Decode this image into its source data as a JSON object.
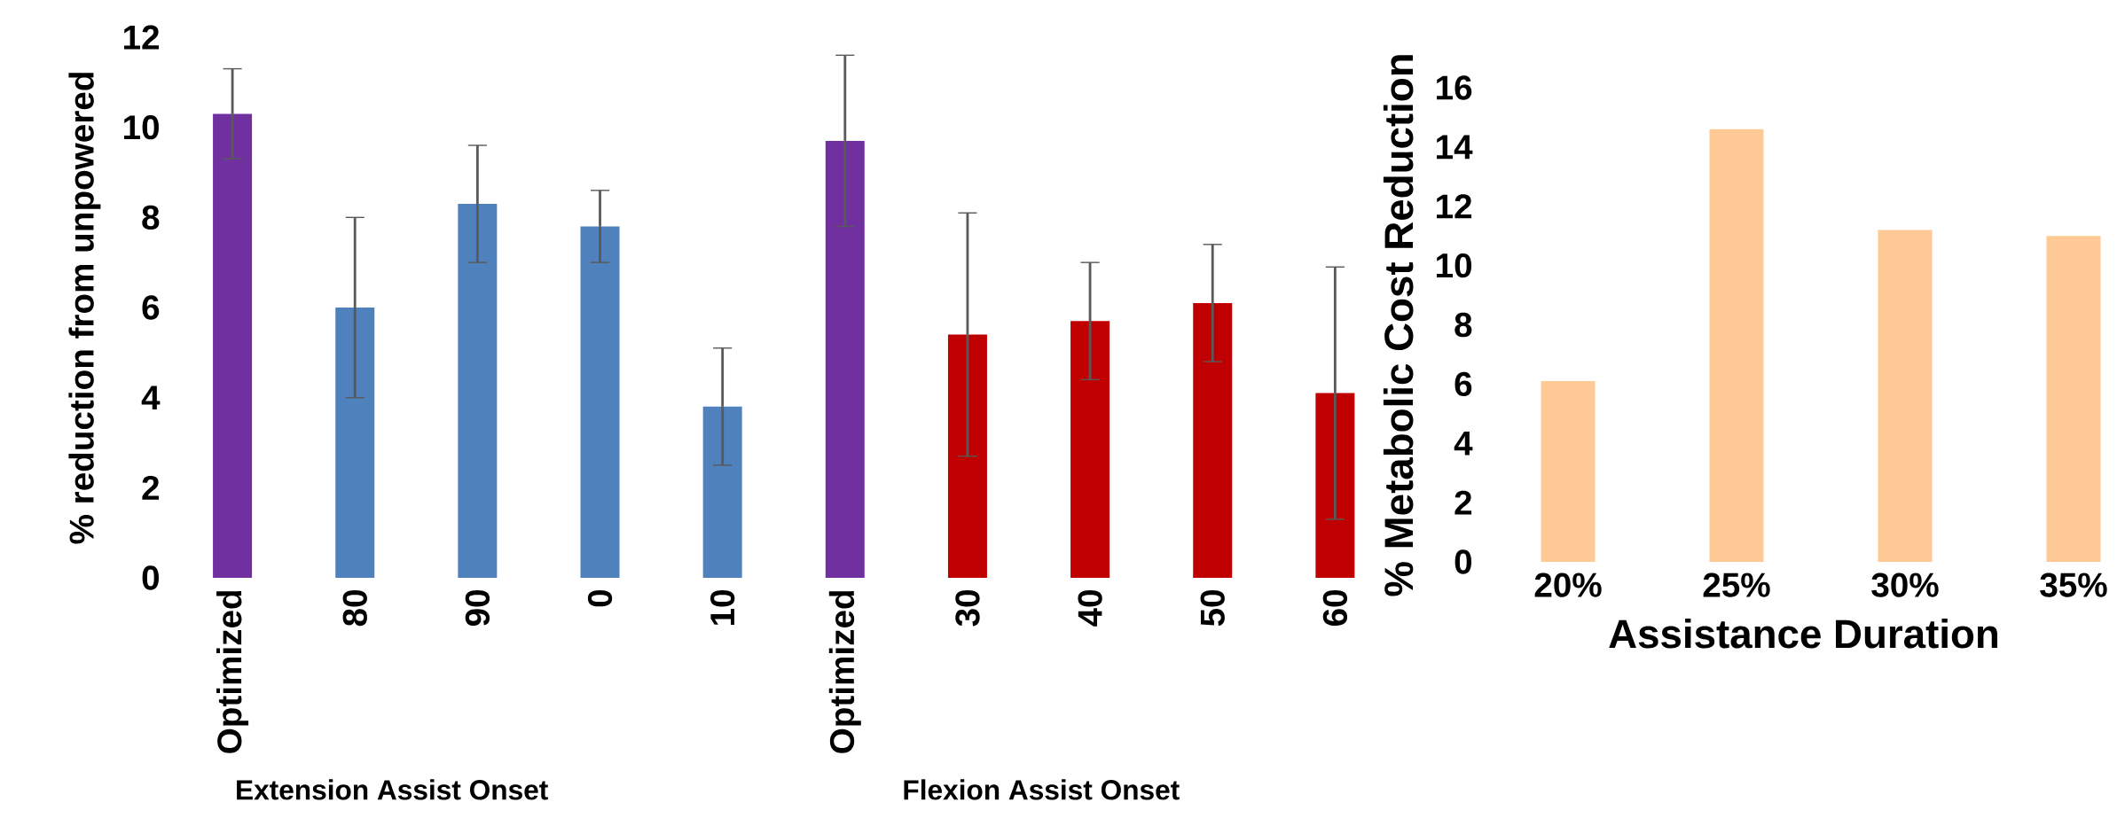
{
  "chart_data": [
    {
      "type": "bar",
      "ylabel": "% reduction from unpowered",
      "categories": [
        "Optimized",
        "80",
        "90",
        "0",
        "10",
        "Optimized",
        "30",
        "40",
        "50",
        "60"
      ],
      "values": [
        10.3,
        6.0,
        8.3,
        7.8,
        3.8,
        9.7,
        5.4,
        5.7,
        6.1,
        4.1
      ],
      "errors": [
        1.0,
        2.0,
        1.3,
        0.8,
        1.3,
        1.9,
        2.7,
        1.3,
        1.3,
        2.8
      ],
      "colors": [
        "#7030a0",
        "#4f81bd",
        "#4f81bd",
        "#4f81bd",
        "#4f81bd",
        "#7030a0",
        "#c00000",
        "#c00000",
        "#c00000",
        "#c00000"
      ],
      "ylim": [
        0,
        12
      ],
      "yticks": [
        0,
        2,
        4,
        6,
        8,
        10,
        12
      ],
      "annotations": [
        "Extension Assist Onset",
        "Flexion Assist Onset"
      ]
    },
    {
      "type": "bar",
      "ylabel": "% Metabolic Cost Reduction",
      "xlabel": "Assistance Duration",
      "categories": [
        "20%",
        "25%",
        "30%",
        "35%"
      ],
      "values": [
        6.1,
        14.6,
        11.2,
        11.0
      ],
      "color": "#fec995",
      "ylim": [
        0,
        16
      ],
      "yticks": [
        0,
        2,
        4,
        6,
        8,
        10,
        12,
        14,
        16
      ]
    }
  ]
}
